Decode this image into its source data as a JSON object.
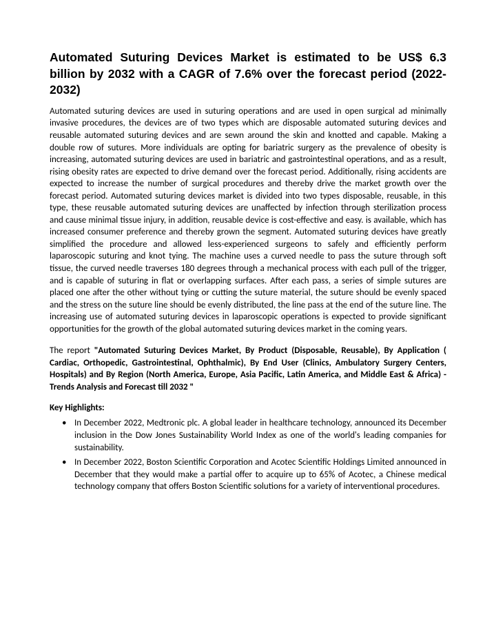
{
  "title": "Automated Suturing Devices Market is estimated to be US$ 6.3 billion by 2032 with a CAGR of 7.6% over the forecast period (2022-2032)",
  "body": "Automated suturing devices are used in suturing operations and are used in open surgical ad minimally invasive procedures, the devices are of two types which are disposable automated suturing devices and reusable automated suturing devices and are sewn around the skin and knotted and capable. Making a double row of sutures. More individuals are opting for bariatric surgery as the prevalence of obesity is increasing, automated suturing devices are used in bariatric and gastrointestinal operations, and as a result, rising obesity rates are expected to drive demand over the forecast period. Additionally, rising accidents are expected to increase the number of surgical procedures and thereby drive the market growth over the forecast period. Automated suturing devices market is divided into two types disposable, reusable, in this type, these reusable automated suturing devices are unaffected by infection through sterilization process and cause minimal tissue injury, in addition, reusable device is cost-effective and easy. is available, which has increased consumer preference and thereby grown the segment.  Automated suturing devices have greatly simplified the procedure and allowed less-experienced surgeons to safely and efficiently perform laparoscopic suturing and knot tying. The machine uses a curved needle to pass the suture through soft tissue, the curved needle traverses 180 degrees through a mechanical process with each pull of the trigger, and is capable of suturing in flat or overlapping surfaces. After each pass, a series of simple sutures are placed one after the other without tying or cutting the suture material, the suture should be evenly spaced and the stress on the suture line should be evenly distributed, the line pass at the end of the suture line. The increasing use of automated suturing devices in laparoscopic operations is expected to provide significant opportunities for the growth of the global automated suturing devices market in the coming years.",
  "report_intro": "The report ",
  "report_bold": "\"Automated Suturing Devices Market, By Product (Disposable, Reusable), By Application ( Cardiac, Orthopedic, Gastrointestinal, Ophthalmic), By End User (Clinics, Ambulatory Surgery Centers, Hospitals) and By Region (North America, Europe, Asia Pacific, Latin America, and Middle East & Africa) - Trends Analysis and Forecast till 2032 \"",
  "highlights_header": "Key Highlights:",
  "highlights": [
    "In December 2022, Medtronic plc. A global leader in healthcare technology, announced its December inclusion in the Dow Jones Sustainability World Index as one of the world's leading companies for sustainability.",
    "In December 2022, Boston Scientific Corporation and Acotec Scientific Holdings Limited announced in December that they would make a partial offer to acquire up to 65% of Acotec, a Chinese medical technology company that offers Boston Scientific solutions for a variety of interventional procedures."
  ],
  "colors": {
    "background": "#ffffff",
    "text": "#000000"
  },
  "typography": {
    "title_fontsize": 17.5,
    "body_fontsize": 13,
    "title_family": "Arial",
    "body_family": "Calibri"
  }
}
